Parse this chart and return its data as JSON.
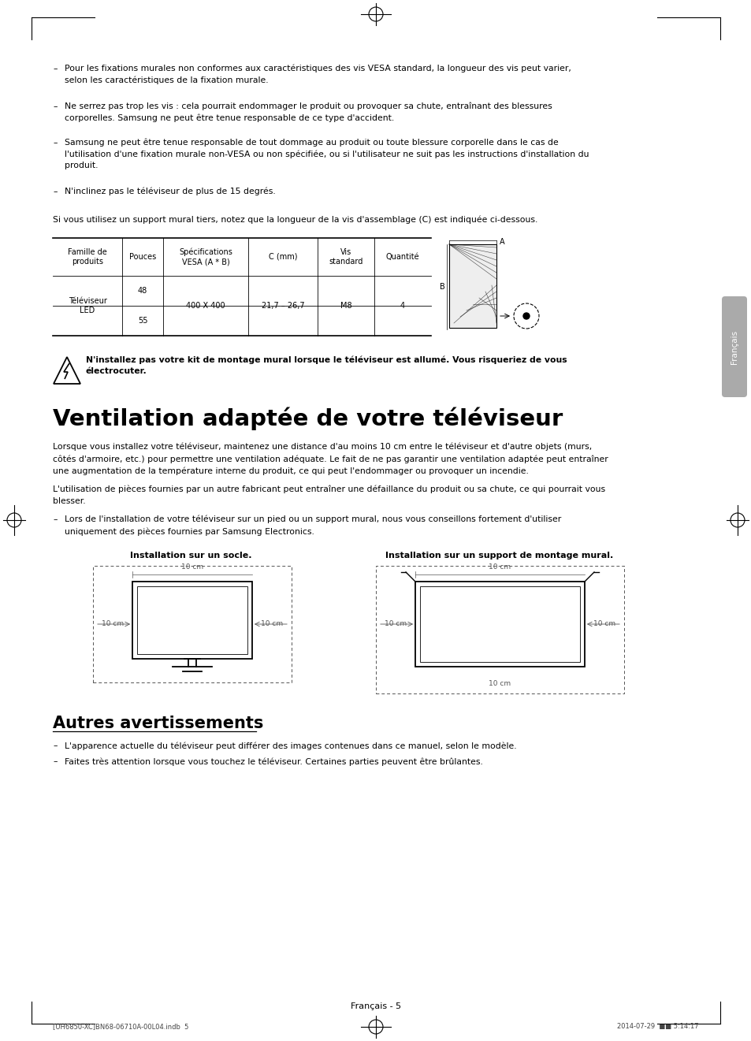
{
  "bg_color": "#ffffff",
  "text_color": "#000000",
  "bullet_items_top": [
    "Pour les fixations murales non conformes aux caractéristiques des vis VESA standard, la longueur des vis peut varier,\nselon les caractéristiques de la fixation murale.",
    "Ne serrez pas trop les vis : cela pourrait endommager le produit ou provoquer sa chute, entraînant des blessures\ncorporelles. Samsung ne peut être tenue responsable de ce type d'accident.",
    "Samsung ne peut être tenue responsable de tout dommage au produit ou toute blessure corporelle dans le cas de\nl'utilisation d'une fixation murale non-VESA ou non spécifiée, ou si l'utilisateur ne suit pas les instructions d'installation du\nproduit.",
    "N'inclinez pas le téléviseur de plus de 15 degrés."
  ],
  "table_intro": "Si vous utilisez un support mural tiers, notez que la longueur de la vis d'assemblage (C) est indiquée ci-dessous.",
  "table_headers": [
    "Famille de\nproduits",
    "Pouces",
    "Spécifications\nVESA (A * B)",
    "C (mm)",
    "Vis\nstandard",
    "Quantité"
  ],
  "table_row1": [
    "Téléviseur\nLED",
    "48",
    "400 X 400",
    "21,7 – 26,7",
    "M8",
    "4"
  ],
  "table_row2_pouces": "55",
  "warning_text": "N'installez pas votre kit de montage mural lorsque le téléviseur est allumé. Vous risqueriez de vous\nélectrocuter.",
  "section_title": "Ventilation adaptée de votre téléviseur",
  "section_para1": "Lorsque vous installez votre téléviseur, maintenez une distance d'au moins 10 cm entre le téléviseur et d'autre objets (murs,\ncôtés d'armoire, etc.) pour permettre une ventilation adéquate. Le fait de ne pas garantir une ventilation adaptée peut entraîner\nune augmentation de la température interne du produit, ce qui peut l'endommager ou provoquer un incendie.",
  "section_para2": "L'utilisation de pièces fournies par un autre fabricant peut entraîner une défaillance du produit ou sa chute, ce qui pourrait vous\nblesser.",
  "section_bullet": "Lors de l'installation de votre téléviseur sur un pied ou un support mural, nous vous conseillons fortement d'utiliser\nuniquement des pièces fournies par Samsung Electronics.",
  "install_title1": "Installation sur un socle.",
  "install_title2": "Installation sur un support de montage mural.",
  "section2_title": "Autres avertissements",
  "section2_bullet1": "L'apparence actuelle du téléviseur peut différer des images contenues dans ce manuel, selon le modèle.",
  "section2_bullet2": "Faites très attention lorsque vous touchez le téléviseur. Certaines parties peuvent être brûlantes.",
  "footer_text": "Français - 5",
  "footer_bottom": "[UH6850-XC]BN68-06710A-00L04.indb  5",
  "footer_bottom_right": "2014-07-29  ■■ 5:14:17",
  "sidebar_text": "Français"
}
